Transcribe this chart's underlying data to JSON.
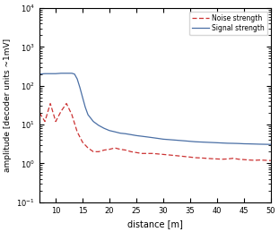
{
  "title": "",
  "xlabel": "distance [m]",
  "ylabel": "amplitude [decoder units ~1mV]",
  "xlim": [
    7,
    50
  ],
  "ylim_log": [
    0.1,
    10000
  ],
  "xticks": [
    10,
    15,
    20,
    25,
    30,
    35,
    40,
    45,
    50
  ],
  "signal_color": "#4a6fa5",
  "noise_color": "#cc3333",
  "legend_labels": [
    "Noise strength",
    "Signal strength"
  ],
  "background_color": "#ffffff",
  "x_signal": [
    7,
    8,
    9,
    10,
    11,
    12,
    13,
    13.5,
    14,
    14.5,
    15,
    15.5,
    16,
    17,
    18,
    19,
    20,
    21,
    22,
    23,
    24,
    25,
    26,
    27,
    28,
    29,
    30,
    31,
    32,
    33,
    34,
    35,
    36,
    37,
    38,
    39,
    40,
    41,
    42,
    43,
    44,
    45,
    46,
    47,
    48,
    49,
    50
  ],
  "y_signal": [
    200,
    205,
    205,
    205,
    210,
    210,
    210,
    200,
    150,
    90,
    50,
    28,
    18,
    12,
    9.5,
    8.0,
    7.0,
    6.5,
    6.0,
    5.8,
    5.5,
    5.2,
    5.0,
    4.8,
    4.6,
    4.4,
    4.2,
    4.1,
    4.0,
    3.9,
    3.8,
    3.7,
    3.6,
    3.55,
    3.5,
    3.45,
    3.4,
    3.35,
    3.3,
    3.28,
    3.25,
    3.2,
    3.18,
    3.15,
    3.12,
    3.1,
    3.08
  ],
  "x_noise": [
    7,
    8,
    9,
    10,
    11,
    12,
    13,
    14,
    15,
    16,
    17,
    18,
    19,
    20,
    21,
    22,
    23,
    24,
    25,
    26,
    27,
    28,
    29,
    30,
    31,
    32,
    33,
    34,
    35,
    36,
    37,
    38,
    39,
    40,
    41,
    42,
    43,
    44,
    45,
    46,
    47,
    48,
    49,
    50
  ],
  "y_noise": [
    20,
    12,
    35,
    12,
    22,
    35,
    18,
    6.5,
    3.5,
    2.5,
    2.0,
    2.0,
    2.2,
    2.3,
    2.5,
    2.3,
    2.2,
    2.0,
    1.9,
    1.8,
    1.8,
    1.8,
    1.75,
    1.7,
    1.65,
    1.6,
    1.55,
    1.5,
    1.45,
    1.4,
    1.38,
    1.35,
    1.32,
    1.3,
    1.28,
    1.3,
    1.35,
    1.28,
    1.25,
    1.22,
    1.2,
    1.22,
    1.2,
    1.18
  ]
}
